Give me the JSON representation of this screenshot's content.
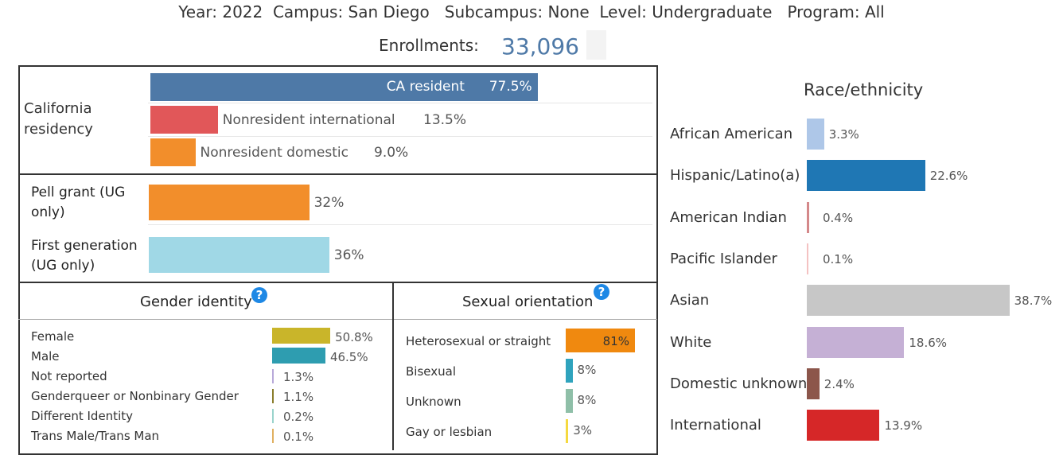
{
  "header": {
    "filters": "Year: 2022  Campus: San Diego   Subcampus: None  Level: Undergraduate   Program: All",
    "enrollments_label": "Enrollments:",
    "enrollments_value": "33,096"
  },
  "residency": {
    "label": "California residency",
    "items": [
      {
        "name": "CA resident",
        "pct": "77.5%",
        "value": 77.5,
        "color": "#4e79a7"
      },
      {
        "name": "Nonresident international",
        "pct": "13.5%",
        "value": 13.5,
        "color": "#e15759"
      },
      {
        "name": "Nonresident domestic",
        "pct": "9.0%",
        "value": 9.0,
        "color": "#f28e2b"
      }
    ]
  },
  "pell": {
    "label": "Pell grant (UG only)",
    "pct": "32%",
    "value": 32,
    "color": "#f28e2b"
  },
  "firstgen": {
    "label": "First generation (UG only)",
    "pct": "36%",
    "value": 36,
    "color": "#a0d8e6"
  },
  "gender": {
    "title": "Gender identity",
    "help": "?",
    "items": [
      {
        "name": "Female",
        "pct": "50.8%",
        "value": 50.8,
        "color": "#c9b52a"
      },
      {
        "name": "Male",
        "pct": "46.5%",
        "value": 46.5,
        "color": "#2e9db0"
      },
      {
        "name": "Not reported",
        "pct": "1.3%",
        "value": 1.3,
        "color": "#b8a9d9"
      },
      {
        "name": "Genderqueer or Nonbinary Gender",
        "pct": "1.1%",
        "value": 1.1,
        "color": "#8a7d2b"
      },
      {
        "name": "Different Identity",
        "pct": "0.2%",
        "value": 0.2,
        "color": "#99d3cc"
      },
      {
        "name": "Trans Male/Trans Man",
        "pct": "0.1%",
        "value": 0.1,
        "color": "#e0b060"
      }
    ]
  },
  "sexual": {
    "title": "Sexual orientation",
    "help": "?",
    "items": [
      {
        "name": "Heterosexual or straight",
        "pct": "81%",
        "value": 81,
        "color": "#f0890f"
      },
      {
        "name": "Bisexual",
        "pct": "8%",
        "value": 8,
        "color": "#2fa3bd"
      },
      {
        "name": "Unknown",
        "pct": "8%",
        "value": 8,
        "color": "#8fbfa8"
      },
      {
        "name": "Gay or lesbian",
        "pct": "3%",
        "value": 3,
        "color": "#f5d940"
      }
    ]
  },
  "chart_data": [
    {
      "type": "bar",
      "title": "",
      "categories": [
        "CA resident",
        "Nonresident international",
        "Nonresident domestic"
      ],
      "values": [
        77.5,
        13.5,
        9.0
      ]
    },
    {
      "type": "bar",
      "title": "",
      "categories": [
        "Pell grant (UG only)",
        "First generation (UG only)"
      ],
      "values": [
        32,
        36
      ]
    },
    {
      "type": "bar",
      "title": "Gender identity",
      "categories": [
        "Female",
        "Male",
        "Not reported",
        "Genderqueer or Nonbinary Gender",
        "Different Identity",
        "Trans Male/Trans Man"
      ],
      "values": [
        50.8,
        46.5,
        1.3,
        1.1,
        0.2,
        0.1
      ]
    },
    {
      "type": "bar",
      "title": "Sexual orientation",
      "categories": [
        "Heterosexual or straight",
        "Bisexual",
        "Unknown",
        "Gay or lesbian"
      ],
      "values": [
        81,
        8,
        8,
        3
      ]
    },
    {
      "type": "bar",
      "title": "Race/ethnicity",
      "categories": [
        "African American",
        "Hispanic/Latino(a)",
        "American Indian",
        "Pacific Islander",
        "Asian",
        "White",
        "Domestic unknown",
        "International"
      ],
      "values": [
        3.3,
        22.6,
        0.4,
        0.1,
        38.7,
        18.6,
        2.4,
        13.9
      ]
    }
  ],
  "race": {
    "title": "Race/ethnicity",
    "items": [
      {
        "name": "African American",
        "pct": "3.3%",
        "value": 3.3,
        "color": "#aec7e8"
      },
      {
        "name": "Hispanic/Latino(a)",
        "pct": "22.6%",
        "value": 22.6,
        "color": "#1f77b4"
      },
      {
        "name": "American Indian",
        "pct": "0.4%",
        "value": 0.4,
        "color": "#d4888a"
      },
      {
        "name": "Pacific Islander",
        "pct": "0.1%",
        "value": 0.1,
        "color": "#f4c2c2"
      },
      {
        "name": "Asian",
        "pct": "38.7%",
        "value": 38.7,
        "color": "#c7c7c7"
      },
      {
        "name": "White",
        "pct": "18.6%",
        "value": 18.6,
        "color": "#c5b0d5"
      },
      {
        "name": "Domestic unknown",
        "pct": "2.4%",
        "value": 2.4,
        "color": "#8c564b"
      },
      {
        "name": "International",
        "pct": "13.9%",
        "value": 13.9,
        "color": "#d62728"
      }
    ]
  }
}
